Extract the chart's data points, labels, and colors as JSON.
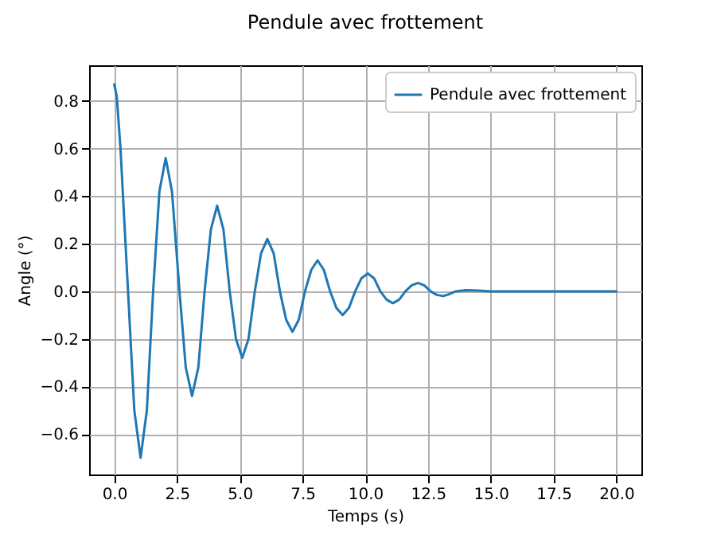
{
  "chart_data": {
    "type": "line",
    "title": "Pendule avec frottement",
    "xlabel": "Temps (s)",
    "ylabel": "Angle (°)",
    "xlim": [
      -1,
      21
    ],
    "ylim": [
      -0.77,
      0.95
    ],
    "xticks": [
      {
        "value": 0,
        "label": "0.0"
      },
      2.5,
      {
        "value": 5,
        "label": "5.0"
      },
      7.5,
      {
        "value": 10,
        "label": "10.0"
      },
      12.5,
      {
        "value": 15,
        "label": "15.0"
      },
      17.5,
      {
        "value": 20,
        "label": "20.0"
      }
    ],
    "yticks": [
      {
        "value": -0.6,
        "label": "−0.6"
      },
      {
        "value": -0.4,
        "label": "−0.4"
      },
      {
        "value": -0.2,
        "label": "−0.2"
      },
      {
        "value": 0,
        "label": "0.0"
      },
      0.2,
      0.4,
      0.6,
      0.8
    ],
    "grid": true,
    "legend": "top right",
    "line_style": "solid",
    "x": [
      0,
      0.1,
      0.25,
      0.55,
      0.8,
      1.05,
      1.3,
      1.55,
      1.8,
      2.05,
      2.3,
      2.6,
      2.85,
      3.1,
      3.35,
      3.6,
      3.85,
      4.1,
      4.35,
      4.6,
      4.85,
      5.1,
      5.35,
      5.6,
      5.85,
      6.1,
      6.35,
      6.6,
      6.85,
      7.1,
      7.35,
      7.6,
      7.85,
      8.1,
      8.35,
      8.6,
      8.85,
      9.1,
      9.35,
      9.6,
      9.85,
      10.1,
      10.35,
      10.6,
      10.85,
      11.1,
      11.35,
      11.6,
      11.85,
      12.1,
      12.35,
      12.6,
      12.85,
      13.1,
      13.35,
      13.6,
      14,
      14.5,
      15,
      17.5,
      20
    ],
    "series": [
      {
        "name": "Pendule avec frottement",
        "color": "#1f77b4",
        "values": [
          0.87,
          0.82,
          0.6,
          0,
          -0.5,
          -0.7,
          -0.5,
          0,
          0.42,
          0.56,
          0.42,
          0,
          -0.32,
          -0.44,
          -0.32,
          0,
          0.26,
          0.36,
          0.26,
          0,
          -0.2,
          -0.28,
          -0.2,
          0,
          0.16,
          0.22,
          0.16,
          0,
          -0.12,
          -0.17,
          -0.12,
          0,
          0.09,
          0.13,
          0.09,
          0,
          -0.07,
          -0.1,
          -0.07,
          0,
          0.055,
          0.075,
          0.055,
          0,
          -0.035,
          -0.05,
          -0.035,
          0,
          0.025,
          0.035,
          0.025,
          0,
          -0.015,
          -0.02,
          -0.012,
          0,
          0.005,
          0.003,
          0,
          0,
          0
        ]
      }
    ]
  }
}
